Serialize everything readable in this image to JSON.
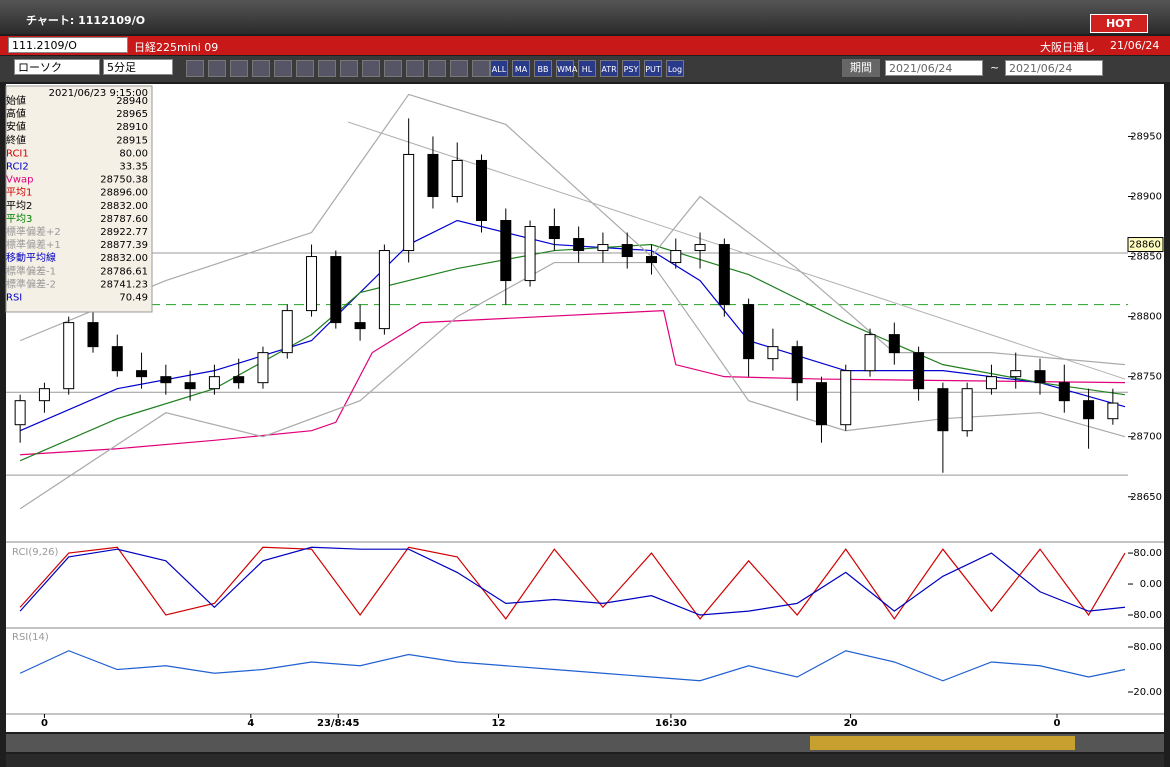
{
  "window": {
    "title": "チャート: 1112109/O",
    "hot": "HOT"
  },
  "header": {
    "code": "111.2109/O",
    "name": "日経225mini 09",
    "market": "大阪日通し",
    "date": "21/06/24"
  },
  "toolbar": {
    "chart_type": "ローソク",
    "period": "5分足",
    "buttons": [
      "ALL",
      "MA",
      "BB",
      "WMA",
      "HL",
      "ATR",
      "PSY",
      "PUT",
      "Log"
    ],
    "range_label": "期間",
    "from": "2021/06/24",
    "tilde": "~",
    "to": "2021/06/24"
  },
  "info": {
    "time": "2021/06/23 9:15:00",
    "rows": [
      {
        "label": "始値",
        "value": "28940",
        "color": "#000"
      },
      {
        "label": "高値",
        "value": "28965",
        "color": "#000"
      },
      {
        "label": "安値",
        "value": "28910",
        "color": "#000"
      },
      {
        "label": "終値",
        "value": "28915",
        "color": "#000"
      },
      {
        "label": "RCI1",
        "value": "80.00",
        "color": "#d00000"
      },
      {
        "label": "RCI2",
        "value": "33.35",
        "color": "#0000c0"
      },
      {
        "label": "Vwap",
        "value": "28750.38",
        "color": "#e0007a"
      },
      {
        "label": "平均1",
        "value": "28896.00",
        "color": "#d00000"
      },
      {
        "label": "平均2",
        "value": "28832.00",
        "color": "#000"
      },
      {
        "label": "平均3",
        "value": "28787.60",
        "color": "#008000"
      },
      {
        "label": "標準偏差+2",
        "value": "28922.77",
        "color": "#999"
      },
      {
        "label": "標準偏差+1",
        "value": "28877.39",
        "color": "#999"
      },
      {
        "label": "移動平均線",
        "value": "28832.00",
        "color": "#0000c0"
      },
      {
        "label": "標準偏差-1",
        "value": "28786.61",
        "color": "#999"
      },
      {
        "label": "標準偏差-2",
        "value": "28741.23",
        "color": "#999"
      },
      {
        "label": "RSI",
        "value": "70.49",
        "color": "#0000c0"
      }
    ]
  },
  "chart": {
    "xlim": [
      -0.5,
      45.5
    ],
    "xticks": [
      {
        "value": 1,
        "label": "0"
      },
      {
        "value": 9.5,
        "label": "4"
      },
      {
        "value": 13.1,
        "label": "23/8:45"
      },
      {
        "value": 19.7,
        "label": "12"
      },
      {
        "value": 26.8,
        "label": "16:30"
      },
      {
        "value": 34.2,
        "label": "20"
      },
      {
        "value": 42.7,
        "label": "0"
      }
    ],
    "price": {
      "ylim": [
        28614,
        28992
      ],
      "yticks": [
        28650,
        28700,
        28750,
        28800,
        28850,
        28900,
        28950
      ],
      "current": {
        "value": 28860,
        "label": "28860"
      },
      "hlines": [
        28853,
        28737,
        28668
      ],
      "dashed": 28810,
      "trendline": {
        "x": [
          13.5,
          45.5
        ],
        "values": [
          28962,
          28748
        ]
      },
      "candles": [
        [
          28710,
          28735,
          28695,
          28730
        ],
        [
          28730,
          28745,
          28720,
          28740
        ],
        [
          28740,
          28800,
          28735,
          28795
        ],
        [
          28795,
          28810,
          28770,
          28775
        ],
        [
          28775,
          28785,
          28750,
          28755
        ],
        [
          28755,
          28770,
          28740,
          28750
        ],
        [
          28750,
          28760,
          28735,
          28745
        ],
        [
          28745,
          28755,
          28730,
          28740
        ],
        [
          28740,
          28760,
          28735,
          28750
        ],
        [
          28750,
          28765,
          28740,
          28745
        ],
        [
          28745,
          28775,
          28740,
          28770
        ],
        [
          28770,
          28810,
          28765,
          28805
        ],
        [
          28805,
          28860,
          28800,
          28850
        ],
        [
          28850,
          28855,
          28790,
          28795
        ],
        [
          28795,
          28810,
          28780,
          28790
        ],
        [
          28790,
          28860,
          28785,
          28855
        ],
        [
          28855,
          28965,
          28845,
          28935
        ],
        [
          28935,
          28950,
          28890,
          28900
        ],
        [
          28900,
          28945,
          28895,
          28930
        ],
        [
          28930,
          28935,
          28870,
          28880
        ],
        [
          28880,
          28890,
          28810,
          28830
        ],
        [
          28830,
          28880,
          28825,
          28875
        ],
        [
          28875,
          28890,
          28855,
          28865
        ],
        [
          28865,
          28875,
          28845,
          28855
        ],
        [
          28855,
          28870,
          28845,
          28860
        ],
        [
          28860,
          28870,
          28840,
          28850
        ],
        [
          28850,
          28860,
          28835,
          28845
        ],
        [
          28845,
          28865,
          28840,
          28855
        ],
        [
          28855,
          28870,
          28840,
          28860
        ],
        [
          28860,
          28865,
          28800,
          28810
        ],
        [
          28810,
          28815,
          28750,
          28765
        ],
        [
          28765,
          28790,
          28755,
          28775
        ],
        [
          28775,
          28780,
          28730,
          28745
        ],
        [
          28745,
          28750,
          28695,
          28710
        ],
        [
          28710,
          28760,
          28705,
          28755
        ],
        [
          28755,
          28790,
          28750,
          28785
        ],
        [
          28785,
          28795,
          28760,
          28770
        ],
        [
          28770,
          28775,
          28730,
          28740
        ],
        [
          28740,
          28745,
          28670,
          28705
        ],
        [
          28705,
          28745,
          28700,
          28740
        ],
        [
          28740,
          28760,
          28735,
          28750
        ],
        [
          28750,
          28770,
          28740,
          28755
        ],
        [
          28755,
          28765,
          28735,
          28745
        ],
        [
          28745,
          28760,
          28720,
          28730
        ],
        [
          28730,
          28740,
          28690,
          28715
        ],
        [
          28715,
          28740,
          28710,
          28728
        ]
      ],
      "lines": [
        {
          "color": "#e0007a",
          "x": [
            0,
            4,
            8,
            12,
            13,
            14.5,
            16.5,
            26.5,
            27,
            29,
            33,
            45.5
          ],
          "values": [
            28685,
            28690,
            28697,
            28705,
            28712,
            28770,
            28795,
            28805,
            28760,
            28750,
            28748,
            28745
          ]
        },
        {
          "color": "#0000d0",
          "x": [
            0,
            4,
            8,
            12,
            14,
            16,
            18,
            22,
            26,
            28,
            30,
            34,
            38,
            42,
            45.5
          ],
          "values": [
            28705,
            28740,
            28755,
            28780,
            28820,
            28860,
            28880,
            28860,
            28855,
            28830,
            28780,
            28755,
            28755,
            28745,
            28725
          ]
        },
        {
          "color": "#208020",
          "x": [
            0,
            4,
            8,
            12,
            14,
            18,
            22,
            26,
            30,
            34,
            38,
            42,
            45.5
          ],
          "values": [
            28680,
            28715,
            28740,
            28785,
            28820,
            28840,
            28855,
            28860,
            28835,
            28795,
            28760,
            28745,
            28735
          ]
        },
        {
          "color": "#aaaaaa",
          "x": [
            0,
            6,
            12,
            16,
            20,
            26,
            28,
            32,
            36,
            40,
            45.5
          ],
          "values": [
            28780,
            28830,
            28870,
            28985,
            28960,
            28850,
            28900,
            28840,
            28770,
            28770,
            28760
          ]
        },
        {
          "color": "#aaaaaa",
          "x": [
            0,
            6,
            10,
            14,
            18,
            22,
            26,
            30,
            34,
            38,
            42,
            45.5
          ],
          "values": [
            28640,
            28720,
            28700,
            28730,
            28800,
            28845,
            28845,
            28730,
            28705,
            28715,
            28720,
            28700
          ]
        }
      ]
    },
    "rci": {
      "label": "RCI(9,26)",
      "ylim": [
        -111,
        106
      ],
      "yticks": [
        {
          "value": 80,
          "label": "80.00"
        },
        {
          "value": 0,
          "label": "0.00"
        },
        {
          "value": -80,
          "label": "-80.00"
        }
      ],
      "series": [
        {
          "color": "#d00000",
          "x": [
            0,
            2,
            4,
            6,
            8,
            10,
            12,
            14,
            16,
            18,
            20,
            22,
            24,
            26,
            28,
            30,
            32,
            34,
            36,
            38,
            40,
            42,
            44,
            45.5
          ],
          "values": [
            -60,
            80,
            95,
            -80,
            -50,
            95,
            90,
            -80,
            95,
            70,
            -90,
            90,
            -60,
            80,
            -90,
            60,
            -80,
            90,
            -90,
            90,
            -70,
            90,
            -80,
            80
          ]
        },
        {
          "color": "#0000c0",
          "x": [
            0,
            2,
            4,
            6,
            8,
            10,
            12,
            14,
            16,
            18,
            20,
            22,
            24,
            26,
            28,
            30,
            32,
            34,
            36,
            38,
            40,
            42,
            44,
            45.5
          ],
          "values": [
            -70,
            70,
            90,
            60,
            -60,
            60,
            95,
            90,
            90,
            30,
            -50,
            -40,
            -50,
            -30,
            -80,
            -70,
            -50,
            30,
            -70,
            20,
            80,
            -20,
            -70,
            -60
          ]
        }
      ]
    },
    "rsi": {
      "label": "RSI(14)",
      "ylim": [
        -8,
        104
      ],
      "yticks": [
        {
          "value": 80,
          "label": "80.00"
        },
        {
          "value": 20,
          "label": "20.00"
        }
      ],
      "series": [
        {
          "color": "#2060d0",
          "x": [
            0,
            2,
            4,
            6,
            8,
            10,
            12,
            14,
            16,
            18,
            20,
            22,
            24,
            26,
            28,
            30,
            32,
            34,
            36,
            38,
            40,
            42,
            44,
            45.5
          ],
          "values": [
            45,
            75,
            50,
            55,
            45,
            50,
            60,
            55,
            70,
            60,
            55,
            50,
            45,
            40,
            35,
            55,
            40,
            75,
            60,
            35,
            60,
            55,
            40,
            50
          ]
        }
      ]
    }
  }
}
